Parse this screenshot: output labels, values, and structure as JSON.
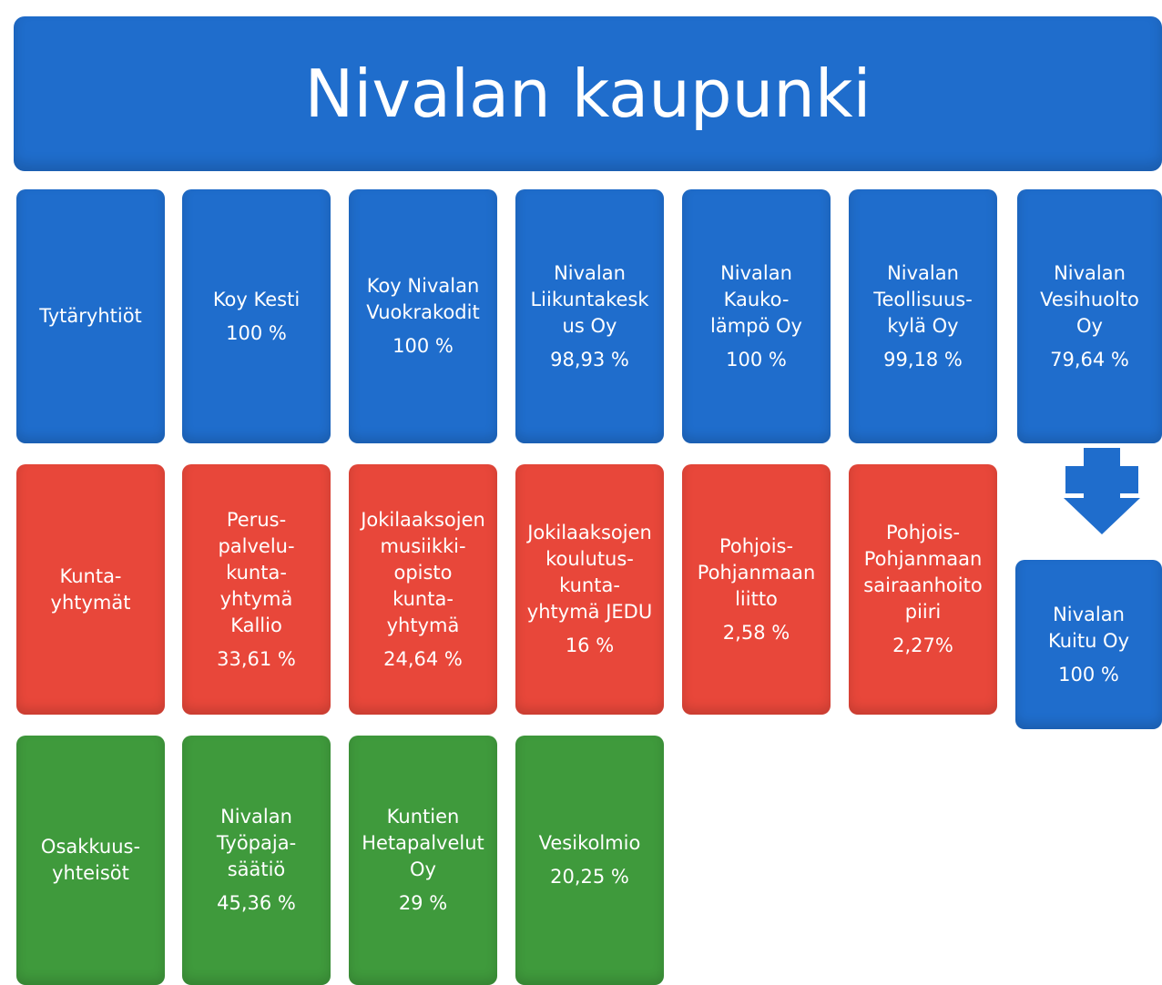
{
  "title": "Nivalan kaupunki",
  "rows": [
    {
      "color": "#1f6dcc",
      "boxes": [
        {
          "lines": [
            "Tytäryhtiöt"
          ]
        },
        {
          "lines": [
            "Koy Kesti",
            "100 %"
          ]
        },
        {
          "lines": [
            "Koy Nivalan",
            "Vuokrakodit",
            "100 %"
          ]
        },
        {
          "lines": [
            "Nivalan",
            "Liikuntakesk",
            "us Oy",
            "98,93 %"
          ]
        },
        {
          "lines": [
            "Nivalan",
            "Kauko-",
            "lämpö Oy",
            "100 %"
          ]
        },
        {
          "lines": [
            "Nivalan",
            "Teollisuus-",
            "kylä Oy",
            "99,18 %"
          ]
        },
        {
          "lines": [
            "Nivalan",
            "Vesihuolto",
            "Oy",
            "79,64 %"
          ]
        }
      ]
    },
    {
      "color": "#e8473a",
      "boxes": [
        {
          "lines": [
            "Kunta-",
            "yhtymät"
          ]
        },
        {
          "lines": [
            "Perus-",
            "palvelu-",
            "kunta-",
            "yhtymä",
            "Kallio",
            "33,61 %"
          ]
        },
        {
          "lines": [
            "Jokilaaksojen",
            "musiikki-",
            "opisto",
            "kunta-",
            "yhtymä",
            "24,64 %"
          ]
        },
        {
          "lines": [
            "Jokilaaksojen",
            "koulutus-",
            "kunta-",
            "yhtymä JEDU",
            "16 %"
          ]
        },
        {
          "lines": [
            "Pohjois-",
            "Pohjanmaan",
            "liitto",
            "2,58 %"
          ]
        },
        {
          "lines": [
            "Pohjois-",
            "Pohjanmaan",
            "sairaanhoito",
            "piiri",
            "2,27%"
          ]
        }
      ]
    },
    {
      "color": "#3f9a3c",
      "boxes": [
        {
          "lines": [
            "Osakkuus-",
            "yhteisöt"
          ]
        },
        {
          "lines": [
            "Nivalan",
            "Työpaja-",
            "säätiö",
            "45,36 %"
          ]
        },
        {
          "lines": [
            "Kuntien",
            "Hetapalvelut",
            "Oy",
            "29 %"
          ]
        },
        {
          "lines": [
            "Vesikolmio",
            "20,25 %"
          ]
        }
      ]
    }
  ],
  "linked_box": {
    "color": "#1f6dcc",
    "lines": [
      "Nivalan",
      "Kuitu Oy",
      "100 %"
    ]
  }
}
